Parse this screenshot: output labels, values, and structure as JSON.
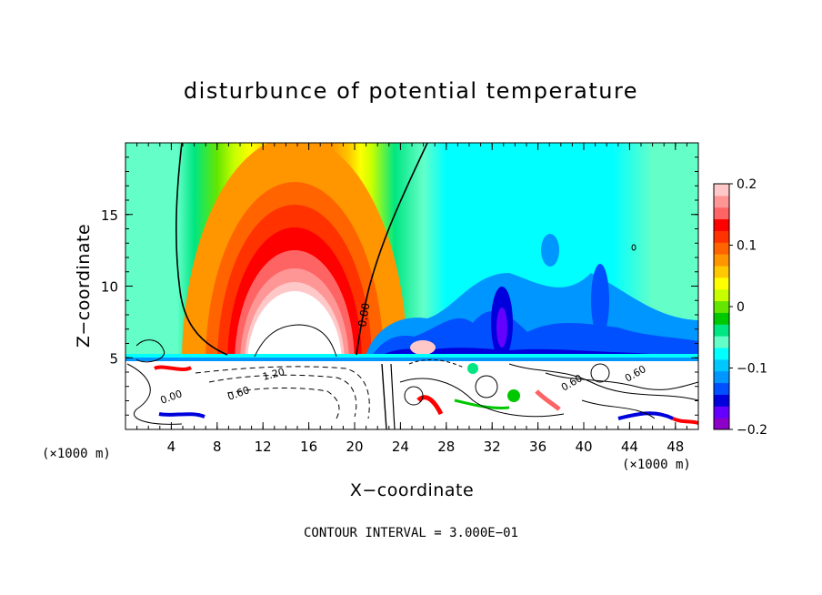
{
  "chart_data": {
    "type": "heatmap",
    "title": "disturbunce of potential temperature",
    "xlabel": "X−coordinate",
    "ylabel": "Z−coordinate",
    "x_unit": "(×1000 m)",
    "footer": "CONTOUR INTERVAL = 3.000E−01",
    "xlim": [
      0,
      50
    ],
    "ylim": [
      0,
      20
    ],
    "x_ticks": [
      4,
      8,
      12,
      16,
      20,
      24,
      28,
      32,
      36,
      40,
      44,
      48
    ],
    "y_ticks": [
      5,
      10,
      15
    ],
    "colorbar": {
      "range": [
        -0.2,
        0.2
      ],
      "tick_values": [
        0.2,
        0.1,
        0,
        -0.1,
        -0.2
      ],
      "tick_labels": [
        "0.2",
        "0.1",
        "0",
        "−0.1",
        "−0.2"
      ],
      "colors": [
        "#8c00c8",
        "#6400ff",
        "#0000dc",
        "#0050ff",
        "#0096ff",
        "#00c8ff",
        "#00ffff",
        "#64ffc8",
        "#00e682",
        "#00c800",
        "#64e600",
        "#c8ff00",
        "#ffff00",
        "#ffc800",
        "#ff9600",
        "#ff6400",
        "#ff3200",
        "#ff0000",
        "#ff6464",
        "#ff9696",
        "#ffc8c8"
      ]
    },
    "contour_labels": [
      "0.00",
      "0.60",
      "1.20",
      "0.60",
      "0.60",
      "0.00"
    ]
  }
}
